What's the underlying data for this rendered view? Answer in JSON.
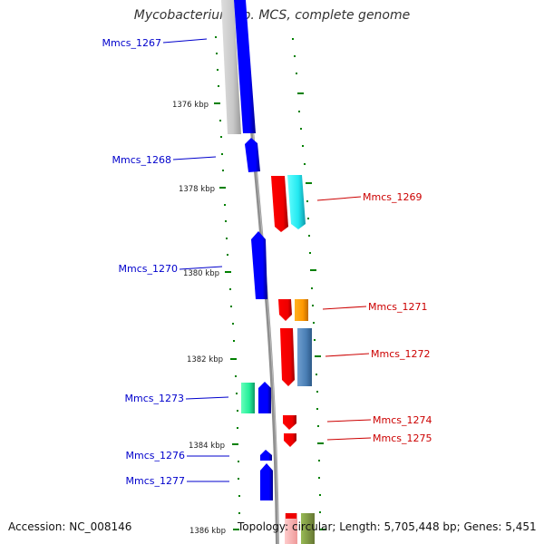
{
  "title": "Mycobacterium sp. MCS, complete genome",
  "accession": "Accession: NC_008146",
  "topology": "Topology: circular; Length: 5,705,448 bp; Genes: 5,451",
  "colors": {
    "forward_label": "#0000cc",
    "reverse_label": "#cc0000",
    "backbone": "#888888",
    "tick": "#008000",
    "forward_gene": "#0000ff",
    "reverse_gene": "#ff0000"
  },
  "kbp_ticks": [
    "1376 kbp",
    "1378 kbp",
    "1380 kbp",
    "1382 kbp",
    "1384 kbp",
    "1386 kbp"
  ],
  "genes": [
    {
      "id": "Mmcs_1267",
      "label": "Mmcs_1267",
      "strand": "forward",
      "color": "#0000ff"
    },
    {
      "id": "Mmcs_1268",
      "label": "Mmcs_1268",
      "strand": "forward",
      "color": "#0000ff"
    },
    {
      "id": "Mmcs_1269",
      "label": "Mmcs_1269",
      "strand": "reverse",
      "color": "#ff0000"
    },
    {
      "id": "Mmcs_1270",
      "label": "Mmcs_1270",
      "strand": "forward",
      "color": "#0000ff"
    },
    {
      "id": "Mmcs_1271",
      "label": "Mmcs_1271",
      "strand": "reverse",
      "color": "#ff0000"
    },
    {
      "id": "Mmcs_1272",
      "label": "Mmcs_1272",
      "strand": "reverse",
      "color": "#ff0000"
    },
    {
      "id": "Mmcs_1273",
      "label": "Mmcs_1273",
      "strand": "forward",
      "color": "#0000ff"
    },
    {
      "id": "Mmcs_1274",
      "label": "Mmcs_1274",
      "strand": "reverse",
      "color": "#ff0000"
    },
    {
      "id": "Mmcs_1275",
      "label": "Mmcs_1275",
      "strand": "reverse",
      "color": "#ff0000"
    },
    {
      "id": "Mmcs_1276",
      "label": "Mmcs_1276",
      "strand": "forward",
      "color": "#0000ff"
    },
    {
      "id": "Mmcs_1277",
      "label": "Mmcs_1277",
      "strand": "forward",
      "color": "#0000ff"
    }
  ]
}
